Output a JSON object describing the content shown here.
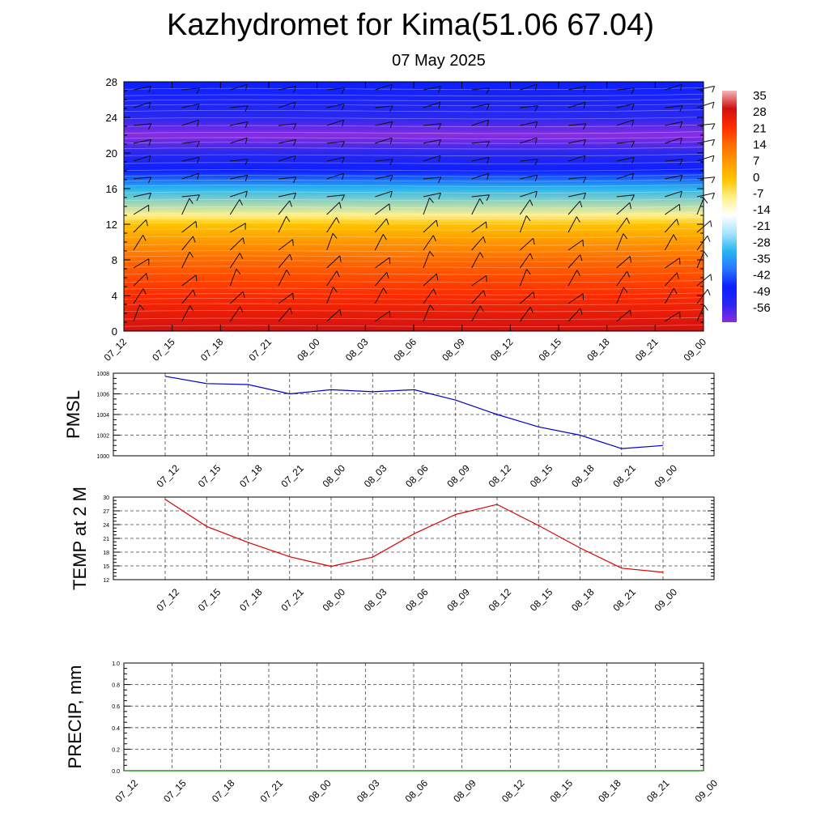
{
  "header": {
    "title": "Kazhydromet for Kima(51.06 67.04)",
    "subtitle": "07 May 2025"
  },
  "chart_data": [
    {
      "type": "heatmap",
      "description_visible": "Temperature cross-section with wind barbs",
      "x_categories": [
        "07_12",
        "07_15",
        "07_18",
        "07_21",
        "08_00",
        "08_03",
        "08_06",
        "08_09",
        "08_12",
        "08_15",
        "08_18",
        "08_21",
        "09_00"
      ],
      "ylim": [
        0,
        28
      ],
      "yticks": [
        0,
        4,
        8,
        12,
        16,
        20,
        24,
        28
      ],
      "colorbar": {
        "labels": [
          "35",
          "28",
          "21",
          "14",
          "7",
          "0",
          "-7",
          "-14",
          "-21",
          "-28",
          "-35",
          "-42",
          "-49",
          "-56"
        ],
        "colors": [
          "#f2b8b8",
          "#d01010",
          "#ff2a00",
          "#ff6a00",
          "#ff9a00",
          "#ffc400",
          "#fff08a",
          "#ffffff",
          "#a8e4ff",
          "#28b6f0",
          "#2878ff",
          "#0d1fff",
          "#2828f0",
          "#8a2be2"
        ]
      },
      "temperature_profile": {
        "levels": [
          0,
          4,
          8,
          12,
          13,
          16,
          18,
          20,
          22,
          24,
          28
        ],
        "values": [
          31,
          24,
          14,
          2,
          -10,
          -28,
          -42,
          -50,
          -56,
          -52,
          -42
        ]
      },
      "wind_barbs": "shown"
    },
    {
      "type": "line",
      "ylabel": "PMSL",
      "x": [
        "07_12",
        "07_15",
        "07_18",
        "07_21",
        "08_00",
        "08_03",
        "08_06",
        "08_09",
        "08_12",
        "08_15",
        "08_18",
        "08_21",
        "09_00"
      ],
      "series": [
        {
          "values": [
            1007.7,
            1007.0,
            1006.9,
            1006.0,
            1006.4,
            1006.2,
            1006.4,
            1005.4,
            1004.0,
            1002.8,
            1002.0,
            1000.7,
            1001.0
          ],
          "color": "#0000cc"
        }
      ],
      "ylim": [
        1000,
        1008
      ],
      "yticks": [
        "1000",
        "1002",
        "1004",
        "1006",
        "1008"
      ],
      "grid": true
    },
    {
      "type": "line",
      "ylabel": "TEMP at 2 M",
      "x": [
        "07_12",
        "07_15",
        "07_18",
        "07_21",
        "08_00",
        "08_03",
        "08_06",
        "08_09",
        "08_12",
        "08_15",
        "08_18",
        "08_21",
        "09_00"
      ],
      "series": [
        {
          "values": [
            29.5,
            23.6,
            20.1,
            17.0,
            14.9,
            16.9,
            22.0,
            26.2,
            28.4,
            23.8,
            18.9,
            14.5,
            13.6
          ],
          "color": "#dd0000"
        }
      ],
      "ylim": [
        12,
        30
      ],
      "yticks": [
        "12",
        "15",
        "18",
        "21",
        "24",
        "27",
        "30"
      ],
      "grid": true
    },
    {
      "type": "line",
      "ylabel": "PRECIP, mm",
      "x": [
        "07_12",
        "07_15",
        "07_18",
        "07_21",
        "08_00",
        "08_03",
        "08_06",
        "08_09",
        "08_12",
        "08_15",
        "08_18",
        "08_21",
        "09_00"
      ],
      "series": [
        {
          "values": [
            0,
            0,
            0,
            0,
            0,
            0,
            0,
            0,
            0,
            0,
            0,
            0,
            0
          ],
          "color": "#008000"
        }
      ],
      "ylim": [
        0,
        1
      ],
      "yticks": [
        "0.0",
        "0.2",
        "0.4",
        "0.6",
        "0.8",
        "1.0"
      ],
      "grid": true
    }
  ]
}
